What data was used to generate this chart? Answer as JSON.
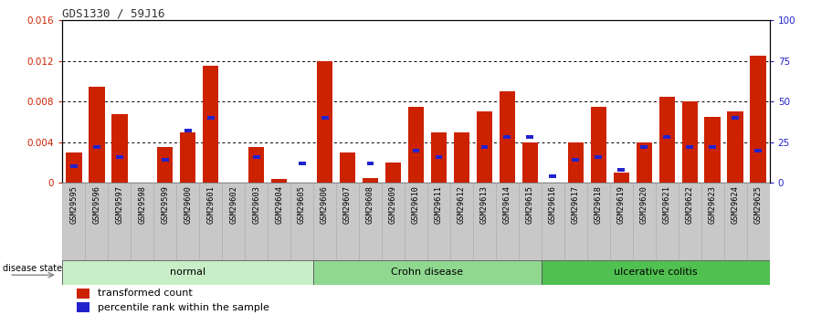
{
  "title": "GDS1330 / 59J16",
  "samples": [
    "GSM29595",
    "GSM29596",
    "GSM29597",
    "GSM29598",
    "GSM29599",
    "GSM29600",
    "GSM29601",
    "GSM29602",
    "GSM29603",
    "GSM29604",
    "GSM29605",
    "GSM29606",
    "GSM29607",
    "GSM29608",
    "GSM29609",
    "GSM29610",
    "GSM29611",
    "GSM29612",
    "GSM29613",
    "GSM29614",
    "GSM29615",
    "GSM29616",
    "GSM29617",
    "GSM29618",
    "GSM29619",
    "GSM29620",
    "GSM29621",
    "GSM29622",
    "GSM29623",
    "GSM29624",
    "GSM29625"
  ],
  "red_values": [
    0.003,
    0.0095,
    0.0068,
    0.0,
    0.0035,
    0.005,
    0.0115,
    0.0,
    0.0035,
    0.0004,
    0.0,
    0.012,
    0.003,
    0.0005,
    0.002,
    0.0075,
    0.005,
    0.005,
    0.007,
    0.009,
    0.004,
    0.0,
    0.004,
    0.0075,
    0.001,
    0.004,
    0.0085,
    0.008,
    0.0065,
    0.007,
    0.0125
  ],
  "blue_pct_values": [
    10,
    22,
    16,
    0,
    14,
    32,
    40,
    0,
    16,
    0,
    12,
    40,
    0,
    12,
    0,
    20,
    16,
    0,
    22,
    28,
    28,
    4,
    14,
    16,
    8,
    22,
    28,
    22,
    22,
    40,
    20
  ],
  "groups": [
    {
      "label": "normal",
      "start": 0,
      "end": 10,
      "color": "#c8eec8"
    },
    {
      "label": "Crohn disease",
      "start": 11,
      "end": 20,
      "color": "#90d890"
    },
    {
      "label": "ulcerative colitis",
      "start": 21,
      "end": 30,
      "color": "#50c050"
    }
  ],
  "ylim_left": [
    0,
    0.016
  ],
  "ylim_right": [
    0,
    100
  ],
  "yticks_left": [
    0,
    0.004,
    0.008,
    0.012,
    0.016
  ],
  "yticks_left_labels": [
    "0",
    "0.004",
    "0.008",
    "0.012",
    "0.016"
  ],
  "yticks_right": [
    0,
    25,
    50,
    75,
    100
  ],
  "yticks_right_labels": [
    "0",
    "25",
    "50",
    "75",
    "100"
  ],
  "bar_color_red": "#cc2200",
  "bar_color_blue": "#2222cc",
  "cell_bg": "#c8c8c8",
  "disease_state_label": "disease state",
  "legend_red": "transformed count",
  "legend_blue": "percentile rank within the sample"
}
